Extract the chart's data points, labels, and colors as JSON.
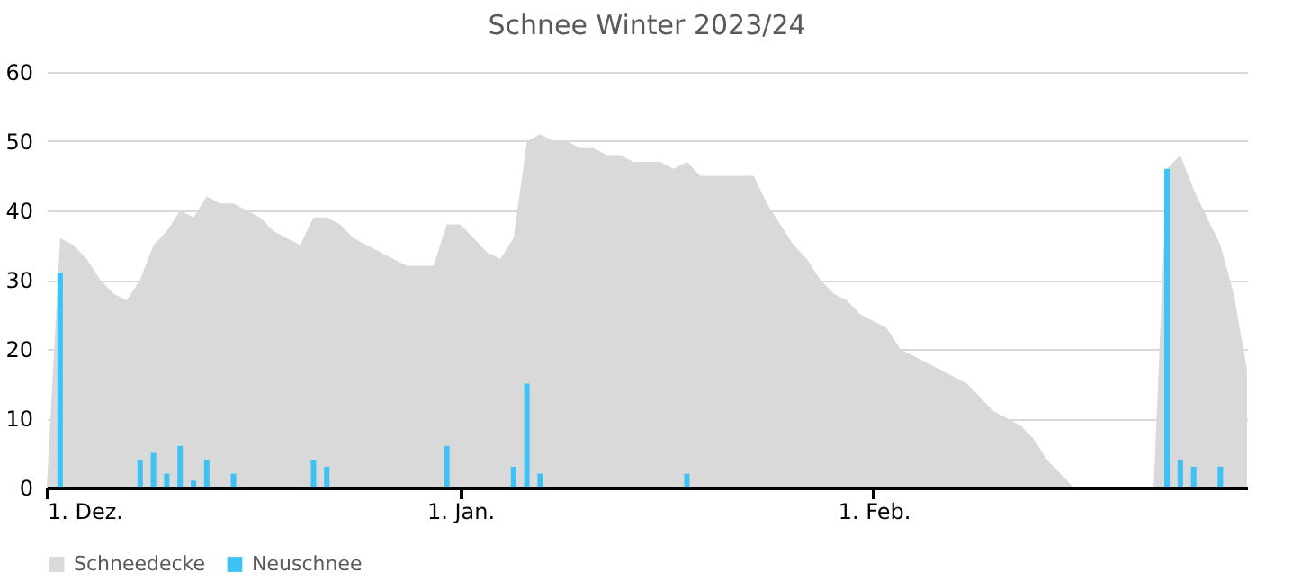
{
  "chart_data": {
    "type": "area",
    "title": "Schnee Winter 2023/24",
    "series": [
      {
        "name": "Schneedecke",
        "color": "#d9d9d9",
        "x": [
          "2023-12-01",
          "2023-12-02",
          "2023-12-03",
          "2023-12-04",
          "2023-12-05",
          "2023-12-06",
          "2023-12-07",
          "2023-12-08",
          "2023-12-09",
          "2023-12-10",
          "2023-12-11",
          "2023-12-12",
          "2023-12-13",
          "2023-12-14",
          "2023-12-15",
          "2023-12-16",
          "2023-12-17",
          "2023-12-18",
          "2023-12-19",
          "2023-12-20",
          "2023-12-21",
          "2023-12-22",
          "2023-12-23",
          "2023-12-24",
          "2023-12-25",
          "2023-12-26",
          "2023-12-27",
          "2023-12-28",
          "2023-12-29",
          "2023-12-30",
          "2023-12-31",
          "2024-01-01",
          "2024-01-02",
          "2024-01-03",
          "2024-01-04",
          "2024-01-05",
          "2024-01-06",
          "2024-01-07",
          "2024-01-08",
          "2024-01-09",
          "2024-01-10",
          "2024-01-11",
          "2024-01-12",
          "2024-01-13",
          "2024-01-14",
          "2024-01-15",
          "2024-01-16",
          "2024-01-17",
          "2024-01-18",
          "2024-01-19",
          "2024-01-20",
          "2024-01-21",
          "2024-01-22",
          "2024-01-23",
          "2024-01-24",
          "2024-01-25",
          "2024-01-26",
          "2024-01-27",
          "2024-01-28",
          "2024-01-29",
          "2024-01-30",
          "2024-01-31",
          "2024-02-01",
          "2024-02-02",
          "2024-02-03",
          "2024-02-04",
          "2024-02-05",
          "2024-02-06",
          "2024-02-07",
          "2024-02-08",
          "2024-02-09",
          "2024-02-10",
          "2024-02-11",
          "2024-02-12",
          "2024-02-13",
          "2024-02-14",
          "2024-02-15",
          "2024-02-16",
          "2024-02-22",
          "2024-02-23",
          "2024-02-24",
          "2024-02-25",
          "2024-02-26",
          "2024-02-27",
          "2024-02-28",
          "2024-02-29"
        ],
        "values": [
          0,
          36,
          35,
          33,
          30,
          28,
          27,
          30,
          35,
          37,
          40,
          39,
          42,
          41,
          41,
          40,
          39,
          37,
          36,
          35,
          39,
          39,
          38,
          36,
          35,
          34,
          33,
          32,
          32,
          32,
          38,
          38,
          36,
          34,
          33,
          36,
          50,
          51,
          50,
          50,
          49,
          49,
          48,
          48,
          47,
          47,
          47,
          46,
          47,
          45,
          45,
          45,
          45,
          45,
          41,
          38,
          35,
          33,
          30,
          28,
          27,
          25,
          24,
          23,
          20,
          19,
          18,
          17,
          16,
          15,
          13,
          11,
          10,
          9,
          7,
          4,
          2,
          0,
          0,
          46,
          48,
          43,
          39,
          35,
          28,
          17
        ]
      },
      {
        "name": "Neuschnee",
        "type": "bar",
        "color": "#3ec1f3",
        "x": [
          "2023-12-02",
          "2023-12-08",
          "2023-12-09",
          "2023-12-10",
          "2023-12-11",
          "2023-12-12",
          "2023-12-13",
          "2023-12-15",
          "2023-12-21",
          "2023-12-22",
          "2023-12-31",
          "2024-01-05",
          "2024-01-06",
          "2024-01-07",
          "2024-01-18",
          "2024-02-23",
          "2024-02-24",
          "2024-02-25",
          "2024-02-27"
        ],
        "values": [
          31,
          4,
          5,
          2,
          6,
          1,
          4,
          2,
          4,
          3,
          6,
          3,
          15,
          2,
          2,
          46,
          4,
          3,
          3
        ]
      }
    ],
    "xlim": [
      "2023-12-01",
      "2024-02-29"
    ],
    "xticks": [
      {
        "value": "2023-12-01",
        "label": "1. Dez."
      },
      {
        "value": "2024-01-01",
        "label": "1. Jan."
      },
      {
        "value": "2024-02-01",
        "label": "1. Feb."
      }
    ],
    "ylim": [
      0,
      60
    ],
    "yticks": [
      0,
      10,
      20,
      30,
      40,
      50,
      60
    ],
    "grid": "y",
    "legend": "bottom"
  }
}
